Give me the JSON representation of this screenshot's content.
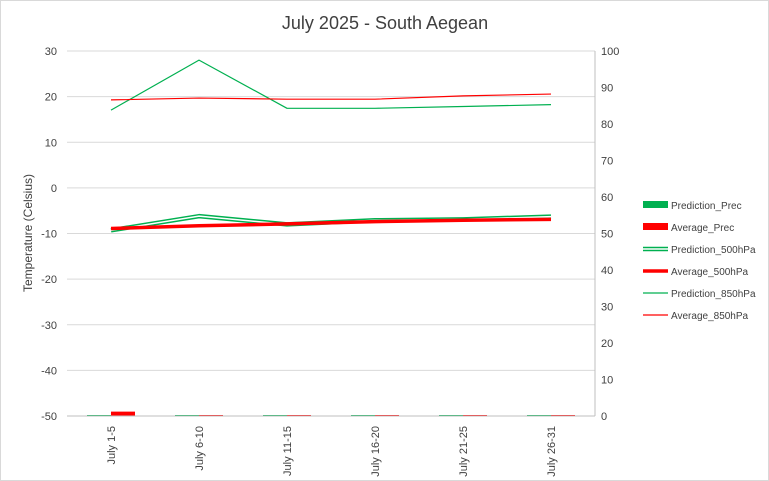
{
  "chart_data": {
    "type": "line",
    "title": "July 2025 - South Aegean",
    "ylabel": "Temperature (Celsius)",
    "y2label": "",
    "categories": [
      "July 1-5",
      "July 6-10",
      "July 11-15",
      "July 16-20",
      "July 21-25",
      "July 26-31"
    ],
    "ylim": [
      -50,
      30
    ],
    "yticks": [
      30,
      20,
      10,
      0,
      -10,
      -20,
      -30,
      -40,
      -50
    ],
    "y2lim": [
      0,
      100
    ],
    "y2ticks": [
      100,
      90,
      80,
      70,
      60,
      50,
      40,
      30,
      20,
      10,
      0
    ],
    "grid": true,
    "legend_position": "right",
    "series": [
      {
        "name": "Prediction_Prec",
        "type": "bar",
        "axis": "right",
        "color": "#00b050",
        "values": [
          0.1,
          0.1,
          0.1,
          0.1,
          0.1,
          0.1
        ]
      },
      {
        "name": "Average_Prec",
        "type": "bar",
        "axis": "right",
        "color": "#ff0000",
        "values": [
          1.2,
          0.1,
          0.1,
          0.1,
          0.1,
          0.1
        ]
      },
      {
        "name": "Prediction_500hPa",
        "type": "line",
        "style": "double",
        "axis": "left",
        "color": "#00b050",
        "values": [
          -9.3,
          -6.2,
          -8.0,
          -7.1,
          -6.9,
          -6.3
        ]
      },
      {
        "name": "Average_500hPa",
        "type": "line",
        "style": "thick",
        "axis": "left",
        "color": "#ff0000",
        "values": [
          -8.9,
          -8.3,
          -7.9,
          -7.4,
          -7.1,
          -6.9
        ]
      },
      {
        "name": "Prediction_850hPa",
        "type": "line",
        "style": "thin",
        "axis": "right",
        "color": "#00b050",
        "values": [
          83.8,
          97.5,
          84.3,
          84.3,
          84.8,
          85.3
        ]
      },
      {
        "name": "Average_850hPa",
        "type": "line",
        "style": "thin",
        "axis": "right",
        "color": "#ff0000",
        "values": [
          86.6,
          87.1,
          86.8,
          86.8,
          87.7,
          88.2
        ]
      }
    ]
  }
}
